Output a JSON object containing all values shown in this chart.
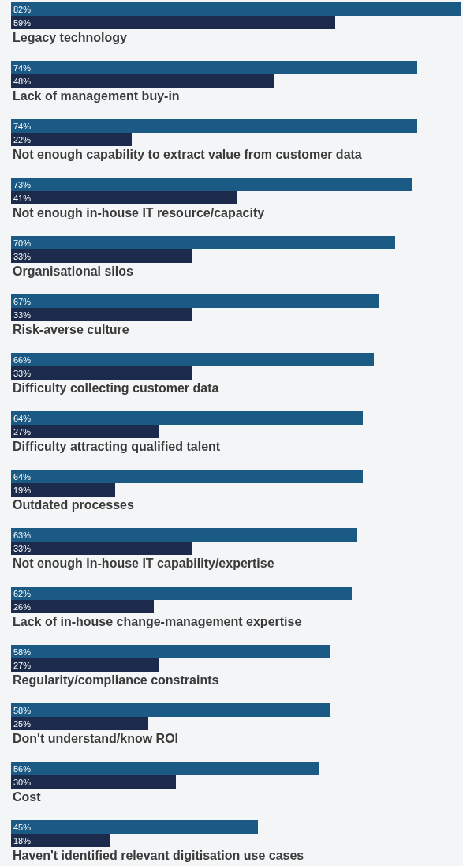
{
  "chart_data": {
    "type": "bar",
    "orientation": "horizontal",
    "categories": [
      "Legacy technology",
      "Lack of management buy-in",
      "Not enough capability to extract value from customer data",
      "Not enough in-house IT resource/capacity",
      "Organisational silos",
      "Risk-averse culture",
      "Difficulty collecting customer data",
      "Difficulty attracting qualified talent",
      "Outdated processes",
      "Not enough in-house IT capability/expertise",
      "Lack of in-house change-management expertise",
      "Regularity/compliance constraints",
      "Don't understand/know ROI",
      "Cost",
      "Haven't identified relevant digitisation use cases"
    ],
    "series": [
      {
        "color": "#1b5a85",
        "values": [
          82,
          74,
          74,
          73,
          70,
          67,
          66,
          64,
          64,
          63,
          62,
          58,
          58,
          56,
          45
        ],
        "value_labels": [
          "82%",
          "74%",
          "74%",
          "73%",
          "70%",
          "67%",
          "66%",
          "64%",
          "64%",
          "63%",
          "62%",
          "58%",
          "58%",
          "56%",
          "45%"
        ]
      },
      {
        "color": "#1c2b4b",
        "values": [
          59,
          48,
          22,
          41,
          33,
          33,
          33,
          27,
          19,
          33,
          26,
          27,
          25,
          30,
          18
        ],
        "value_labels": [
          "59%",
          "48%",
          "22%",
          "41%",
          "33%",
          "33%",
          "33%",
          "27%",
          "19%",
          "33%",
          "26%",
          "27%",
          "25%",
          "30%",
          "18%"
        ]
      }
    ]
  }
}
